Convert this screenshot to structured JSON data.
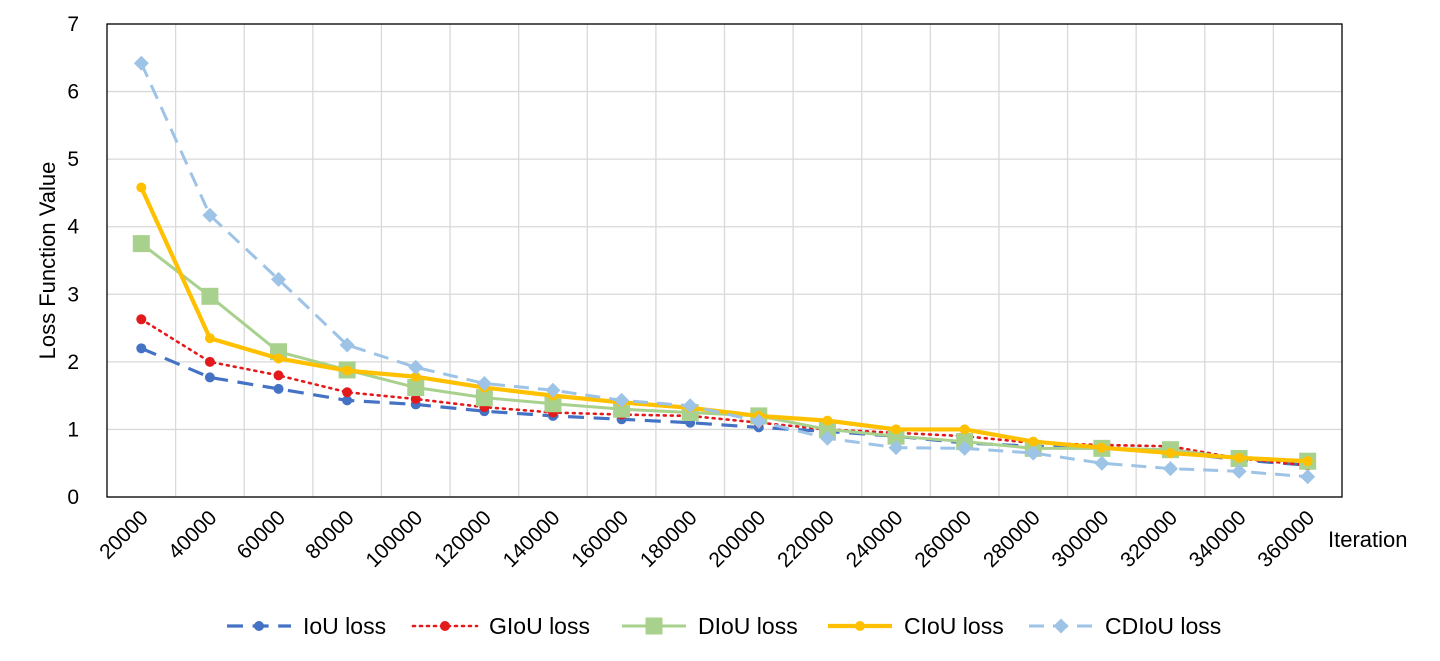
{
  "chart_data": {
    "type": "line",
    "title": "",
    "xlabel": "Iteration",
    "ylabel": "Loss Function Value",
    "ylim": [
      0,
      7
    ],
    "yticks": [
      "0",
      "1",
      "2",
      "3",
      "4",
      "5",
      "6",
      "7"
    ],
    "categories": [
      "20000",
      "40000",
      "60000",
      "80000",
      "100000",
      "120000",
      "140000",
      "160000",
      "180000",
      "200000",
      "220000",
      "240000",
      "260000",
      "280000",
      "300000",
      "320000",
      "340000",
      "360000"
    ],
    "grid": true,
    "legend_position": "bottom",
    "series": [
      {
        "name": "IoU loss",
        "color": "#4472C4",
        "dash": "dashed",
        "marker": "circle",
        "values": [
          2.2,
          1.77,
          1.6,
          1.43,
          1.37,
          1.27,
          1.2,
          1.15,
          1.1,
          1.03,
          0.97,
          0.9,
          0.8,
          0.75,
          0.72,
          0.67,
          0.55,
          0.47
        ]
      },
      {
        "name": "GIoU loss",
        "color": "#E31A1C",
        "dash": "dotted",
        "marker": "circle",
        "values": [
          2.63,
          2.0,
          1.8,
          1.55,
          1.45,
          1.33,
          1.25,
          1.22,
          1.2,
          1.1,
          1.0,
          0.95,
          0.9,
          0.8,
          0.77,
          0.75,
          0.57,
          0.47
        ]
      },
      {
        "name": "DIoU loss",
        "color": "#A9D18E",
        "dash": "solid",
        "marker": "square",
        "values": [
          3.75,
          2.97,
          2.15,
          1.88,
          1.62,
          1.47,
          1.38,
          1.3,
          1.25,
          1.2,
          1.0,
          0.9,
          0.82,
          0.72,
          0.72,
          0.7,
          0.57,
          0.53
        ]
      },
      {
        "name": "CIoU loss",
        "color": "#FFC000",
        "dash": "solid",
        "marker": "circle",
        "values": [
          4.58,
          2.35,
          2.05,
          1.87,
          1.78,
          1.62,
          1.5,
          1.4,
          1.32,
          1.2,
          1.13,
          1.0,
          1.0,
          0.82,
          0.73,
          0.65,
          0.58,
          0.53
        ]
      },
      {
        "name": "CDIoU loss",
        "color": "#9DC3E6",
        "dash": "dashed",
        "marker": "diamond",
        "values": [
          6.42,
          4.17,
          3.22,
          2.25,
          1.92,
          1.68,
          1.58,
          1.43,
          1.35,
          1.12,
          0.87,
          0.73,
          0.72,
          0.65,
          0.5,
          0.42,
          0.38,
          0.3
        ]
      }
    ]
  }
}
